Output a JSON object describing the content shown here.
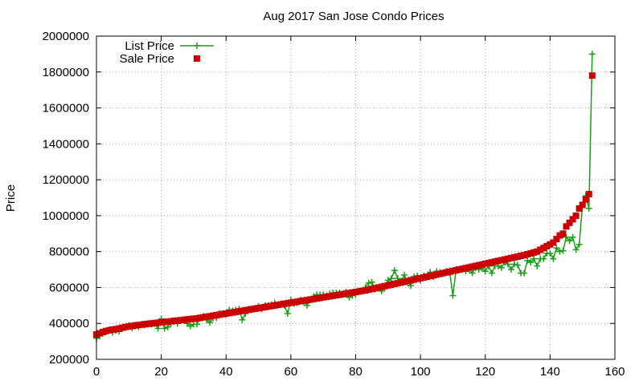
{
  "chart_data": {
    "type": "line",
    "title": "Aug 2017 San Jose Condo Prices",
    "xlabel": "",
    "ylabel": "Price",
    "xlim": [
      0,
      160
    ],
    "ylim": [
      200000,
      2000000
    ],
    "xticks": [
      0,
      20,
      40,
      60,
      80,
      100,
      120,
      140,
      160
    ],
    "yticks": [
      200000,
      400000,
      600000,
      800000,
      1000000,
      1200000,
      1400000,
      1600000,
      1800000,
      2000000
    ],
    "grid": true,
    "legend_position": "top-left",
    "series": [
      {
        "name": "List Price",
        "color": "#1a9e1a",
        "marker": "plus",
        "line": true,
        "values": [
          318000,
          330000,
          345000,
          355000,
          365000,
          350000,
          360000,
          355000,
          372000,
          378000,
          390000,
          375000,
          385000,
          380000,
          395000,
          392000,
          395000,
          395000,
          398000,
          372000,
          425000,
          372000,
          380000,
          400000,
          410000,
          400000,
          415000,
          420000,
          400000,
          385000,
          395000,
          395000,
          430000,
          440000,
          420000,
          405000,
          430000,
          430000,
          455000,
          455000,
          450000,
          475000,
          470000,
          475000,
          480000,
          420000,
          455000,
          480000,
          480000,
          485000,
          495000,
          480000,
          500000,
          500000,
          505000,
          515000,
          505000,
          510000,
          500000,
          455000,
          530000,
          510000,
          515000,
          530000,
          520000,
          500000,
          530000,
          550000,
          560000,
          560000,
          560000,
          555000,
          565000,
          570000,
          570000,
          570000,
          560000,
          575000,
          545000,
          555000,
          560000,
          580000,
          580000,
          600000,
          625000,
          630000,
          590000,
          600000,
          580000,
          600000,
          640000,
          650000,
          695000,
          650000,
          635000,
          670000,
          630000,
          610000,
          660000,
          665000,
          640000,
          665000,
          660000,
          685000,
          660000,
          690000,
          685000,
          680000,
          690000,
          690000,
          555000,
          700000,
          700000,
          700000,
          690000,
          700000,
          680000,
          710000,
          700000,
          710000,
          690000,
          720000,
          680000,
          720000,
          720000,
          710000,
          740000,
          730000,
          700000,
          730000,
          725000,
          680000,
          680000,
          750000,
          740000,
          760000,
          720000,
          760000,
          760000,
          790000,
          790000,
          760000,
          820000,
          800000,
          805000,
          880000,
          860000,
          880000,
          810000,
          840000,
          1060000,
          1110000,
          1040000,
          1900000
        ]
      },
      {
        "name": "Sale Price",
        "color": "#cc0000",
        "marker": "square",
        "line": false,
        "values": [
          338000,
          345000,
          352000,
          358000,
          362000,
          365000,
          368000,
          372000,
          376000,
          380000,
          383000,
          386000,
          389000,
          391000,
          393000,
          396000,
          398000,
          400000,
          402000,
          404000,
          406000,
          408000,
          410000,
          412000,
          414000,
          416000,
          418000,
          420000,
          422000,
          424000,
          426000,
          428000,
          431000,
          434000,
          437000,
          440000,
          443000,
          446000,
          449000,
          452000,
          455000,
          458000,
          461000,
          464000,
          467000,
          470000,
          473000,
          476000,
          479000,
          482000,
          485000,
          488000,
          491000,
          494000,
          497000,
          500000,
          503000,
          506000,
          509000,
          512000,
          515000,
          518000,
          521000,
          524000,
          527000,
          530000,
          533000,
          536000,
          539000,
          542000,
          545000,
          548000,
          551000,
          554000,
          557000,
          560000,
          563000,
          566000,
          569000,
          572000,
          575000,
          578000,
          581000,
          584000,
          588000,
          592000,
          596000,
          600000,
          604000,
          608000,
          612000,
          616000,
          620000,
          624000,
          628000,
          632000,
          636000,
          640000,
          644000,
          648000,
          652000,
          656000,
          660000,
          664000,
          668000,
          672000,
          676000,
          680000,
          684000,
          688000,
          692000,
          696000,
          700000,
          704000,
          708000,
          712000,
          716000,
          720000,
          724000,
          728000,
          732000,
          736000,
          740000,
          744000,
          748000,
          752000,
          756000,
          760000,
          764000,
          768000,
          772000,
          776000,
          780000,
          785000,
          790000,
          795000,
          800000,
          810000,
          820000,
          830000,
          840000,
          850000,
          870000,
          890000,
          900000,
          940000,
          960000,
          980000,
          1000000,
          1040000,
          1060000,
          1090000,
          1120000,
          1780000
        ]
      }
    ]
  }
}
